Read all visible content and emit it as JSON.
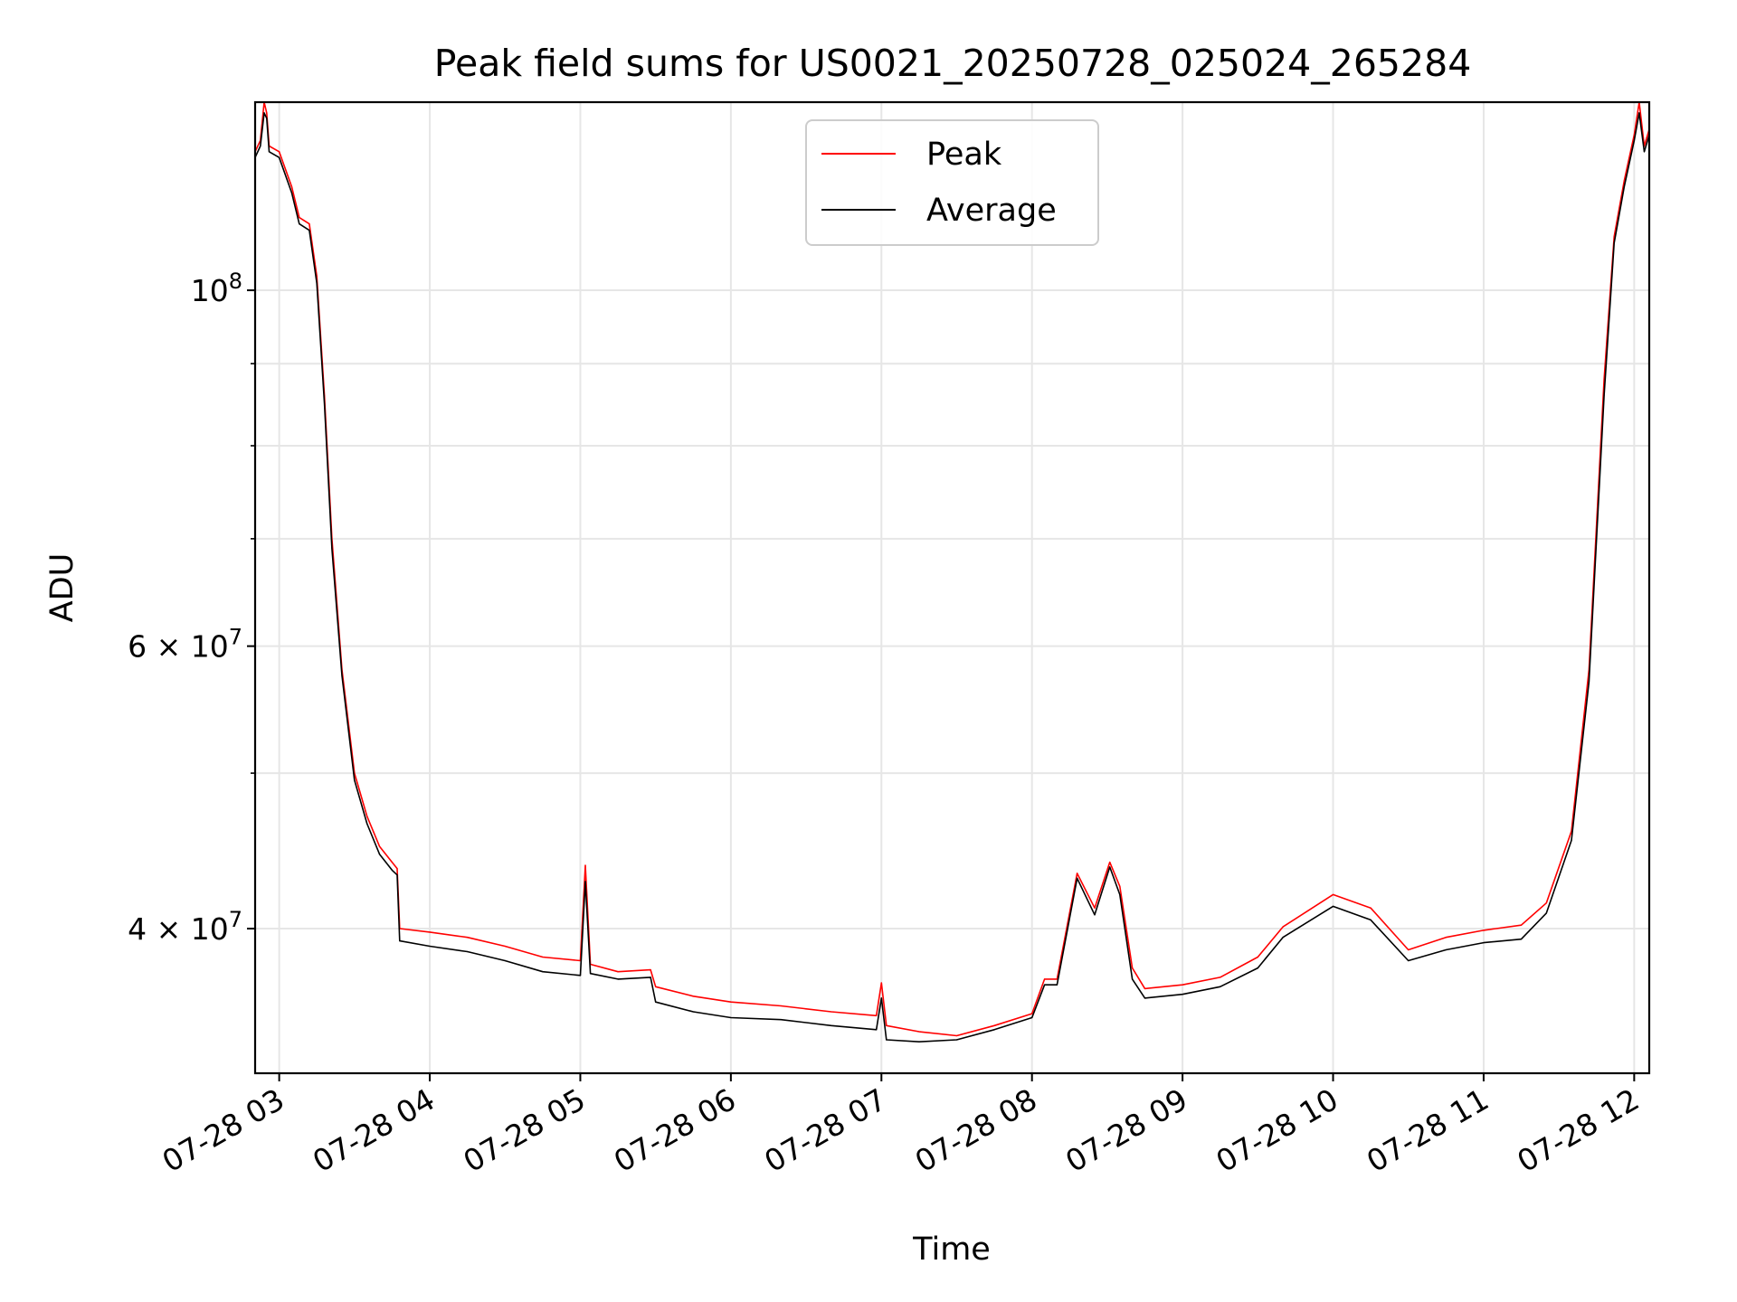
{
  "chart_data": {
    "type": "line",
    "title": "Peak field sums for US0021_20250728_025024_265284",
    "xlabel": "Time",
    "ylabel": "ADU",
    "x_scale": "time",
    "y_scale": "log",
    "xlim": [
      "2025-07-28 02:50:24",
      "2025-07-28 12:06:00"
    ],
    "ylim": [
      32500000,
      131000000
    ],
    "x_ticks": [
      {
        "value": "2025-07-28 03:00",
        "label": "07-28 03"
      },
      {
        "value": "2025-07-28 04:00",
        "label": "07-28 04"
      },
      {
        "value": "2025-07-28 05:00",
        "label": "07-28 05"
      },
      {
        "value": "2025-07-28 06:00",
        "label": "07-28 06"
      },
      {
        "value": "2025-07-28 07:00",
        "label": "07-28 07"
      },
      {
        "value": "2025-07-28 08:00",
        "label": "07-28 08"
      },
      {
        "value": "2025-07-28 09:00",
        "label": "07-28 09"
      },
      {
        "value": "2025-07-28 10:00",
        "label": "07-28 10"
      },
      {
        "value": "2025-07-28 11:00",
        "label": "07-28 11"
      },
      {
        "value": "2025-07-28 12:00",
        "label": "07-28 12"
      }
    ],
    "y_major_ticks": [
      {
        "value": 100000000,
        "base": "10",
        "exp": "8"
      },
      {
        "value": 60000000,
        "base": "6 × 10",
        "exp": "7"
      },
      {
        "value": 40000000,
        "base": "4 × 10",
        "exp": "7"
      }
    ],
    "y_minor_ticks": [
      50000000,
      70000000,
      80000000,
      90000000
    ],
    "grid": true,
    "legend": {
      "position": "top-center"
    },
    "colors": {
      "peak": "#ff0000",
      "average": "#000000",
      "grid": "#e6e6e6"
    },
    "series": [
      {
        "name": "Peak",
        "color": "#ff0000",
        "points": [
          [
            "2025-07-28 02:50:24",
            122000000
          ],
          [
            "2025-07-28 02:52:30",
            124000000
          ],
          [
            "2025-07-28 02:54:00",
            131000000
          ],
          [
            "2025-07-28 02:55:00",
            129000000
          ],
          [
            "2025-07-28 02:56:00",
            123000000
          ],
          [
            "2025-07-28 03:00:00",
            122000000
          ],
          [
            "2025-07-28 03:05:00",
            116000000
          ],
          [
            "2025-07-28 03:08:00",
            111000000
          ],
          [
            "2025-07-28 03:12:00",
            110000000
          ],
          [
            "2025-07-28 03:15:00",
            102000000
          ],
          [
            "2025-07-28 03:18:00",
            86000000
          ],
          [
            "2025-07-28 03:21:00",
            70000000
          ],
          [
            "2025-07-28 03:25:00",
            58000000
          ],
          [
            "2025-07-28 03:30:00",
            50000000
          ],
          [
            "2025-07-28 03:35:00",
            47000000
          ],
          [
            "2025-07-28 03:40:00",
            45000000
          ],
          [
            "2025-07-28 03:45:00",
            44000000
          ],
          [
            "2025-07-28 03:47:00",
            43600000
          ],
          [
            "2025-07-28 03:48:00",
            40000000
          ],
          [
            "2025-07-28 04:00:00",
            39800000
          ],
          [
            "2025-07-28 04:15:00",
            39500000
          ],
          [
            "2025-07-28 04:30:00",
            39000000
          ],
          [
            "2025-07-28 04:45:00",
            38400000
          ],
          [
            "2025-07-28 05:00:00",
            38200000
          ],
          [
            "2025-07-28 05:02:00",
            43800000
          ],
          [
            "2025-07-28 05:04:00",
            38000000
          ],
          [
            "2025-07-28 05:15:00",
            37600000
          ],
          [
            "2025-07-28 05:28:00",
            37700000
          ],
          [
            "2025-07-28 05:30:00",
            36800000
          ],
          [
            "2025-07-28 05:45:00",
            36300000
          ],
          [
            "2025-07-28 06:00:00",
            36000000
          ],
          [
            "2025-07-28 06:20:00",
            35800000
          ],
          [
            "2025-07-28 06:40:00",
            35500000
          ],
          [
            "2025-07-28 06:58:00",
            35300000
          ],
          [
            "2025-07-28 07:00:00",
            37000000
          ],
          [
            "2025-07-28 07:02:00",
            34800000
          ],
          [
            "2025-07-28 07:15:00",
            34500000
          ],
          [
            "2025-07-28 07:30:00",
            34300000
          ],
          [
            "2025-07-28 07:45:00",
            34800000
          ],
          [
            "2025-07-28 08:00:00",
            35400000
          ],
          [
            "2025-07-28 08:05:00",
            37200000
          ],
          [
            "2025-07-28 08:10:00",
            37200000
          ],
          [
            "2025-07-28 08:18:00",
            43300000
          ],
          [
            "2025-07-28 08:25:00",
            41200000
          ],
          [
            "2025-07-28 08:31:00",
            44000000
          ],
          [
            "2025-07-28 08:35:00",
            42500000
          ],
          [
            "2025-07-28 08:40:00",
            37800000
          ],
          [
            "2025-07-28 08:45:00",
            36700000
          ],
          [
            "2025-07-28 09:00:00",
            36900000
          ],
          [
            "2025-07-28 09:15:00",
            37300000
          ],
          [
            "2025-07-28 09:30:00",
            38400000
          ],
          [
            "2025-07-28 09:40:00",
            40100000
          ],
          [
            "2025-07-28 10:00:00",
            42000000
          ],
          [
            "2025-07-28 10:15:00",
            41200000
          ],
          [
            "2025-07-28 10:30:00",
            38800000
          ],
          [
            "2025-07-28 10:45:00",
            39500000
          ],
          [
            "2025-07-28 11:00:00",
            39900000
          ],
          [
            "2025-07-28 11:15:00",
            40200000
          ],
          [
            "2025-07-28 11:25:00",
            41500000
          ],
          [
            "2025-07-28 11:35:00",
            46000000
          ],
          [
            "2025-07-28 11:42:00",
            58000000
          ],
          [
            "2025-07-28 11:48:00",
            88000000
          ],
          [
            "2025-07-28 11:52:00",
            108000000
          ],
          [
            "2025-07-28 11:56:00",
            117000000
          ],
          [
            "2025-07-28 12:00:00",
            125000000
          ],
          [
            "2025-07-28 12:02:00",
            131000000
          ],
          [
            "2025-07-28 12:04:00",
            123000000
          ],
          [
            "2025-07-28 12:06:00",
            126000000
          ]
        ]
      },
      {
        "name": "Average",
        "color": "#000000",
        "points": [
          [
            "2025-07-28 02:50:24",
            121000000
          ],
          [
            "2025-07-28 02:52:30",
            123000000
          ],
          [
            "2025-07-28 02:54:00",
            129000000
          ],
          [
            "2025-07-28 02:55:00",
            128000000
          ],
          [
            "2025-07-28 02:56:00",
            122000000
          ],
          [
            "2025-07-28 03:00:00",
            121000000
          ],
          [
            "2025-07-28 03:05:00",
            115000000
          ],
          [
            "2025-07-28 03:08:00",
            110000000
          ],
          [
            "2025-07-28 03:12:00",
            109000000
          ],
          [
            "2025-07-28 03:15:00",
            101000000
          ],
          [
            "2025-07-28 03:18:00",
            85000000
          ],
          [
            "2025-07-28 03:21:00",
            69000000
          ],
          [
            "2025-07-28 03:25:00",
            57500000
          ],
          [
            "2025-07-28 03:30:00",
            49500000
          ],
          [
            "2025-07-28 03:35:00",
            46500000
          ],
          [
            "2025-07-28 03:40:00",
            44500000
          ],
          [
            "2025-07-28 03:45:00",
            43500000
          ],
          [
            "2025-07-28 03:47:00",
            43200000
          ],
          [
            "2025-07-28 03:48:00",
            39300000
          ],
          [
            "2025-07-28 04:00:00",
            39000000
          ],
          [
            "2025-07-28 04:15:00",
            38700000
          ],
          [
            "2025-07-28 04:30:00",
            38200000
          ],
          [
            "2025-07-28 04:45:00",
            37600000
          ],
          [
            "2025-07-28 05:00:00",
            37400000
          ],
          [
            "2025-07-28 05:02:00",
            42800000
          ],
          [
            "2025-07-28 05:04:00",
            37500000
          ],
          [
            "2025-07-28 05:15:00",
            37200000
          ],
          [
            "2025-07-28 05:28:00",
            37300000
          ],
          [
            "2025-07-28 05:30:00",
            36000000
          ],
          [
            "2025-07-28 05:45:00",
            35500000
          ],
          [
            "2025-07-28 06:00:00",
            35200000
          ],
          [
            "2025-07-28 06:20:00",
            35100000
          ],
          [
            "2025-07-28 06:40:00",
            34800000
          ],
          [
            "2025-07-28 06:58:00",
            34600000
          ],
          [
            "2025-07-28 07:00:00",
            36200000
          ],
          [
            "2025-07-28 07:02:00",
            34100000
          ],
          [
            "2025-07-28 07:15:00",
            34000000
          ],
          [
            "2025-07-28 07:30:00",
            34100000
          ],
          [
            "2025-07-28 07:45:00",
            34600000
          ],
          [
            "2025-07-28 08:00:00",
            35200000
          ],
          [
            "2025-07-28 08:05:00",
            36900000
          ],
          [
            "2025-07-28 08:10:00",
            36900000
          ],
          [
            "2025-07-28 08:18:00",
            43000000
          ],
          [
            "2025-07-28 08:25:00",
            40800000
          ],
          [
            "2025-07-28 08:31:00",
            43700000
          ],
          [
            "2025-07-28 08:35:00",
            42000000
          ],
          [
            "2025-07-28 08:40:00",
            37200000
          ],
          [
            "2025-07-28 08:45:00",
            36200000
          ],
          [
            "2025-07-28 09:00:00",
            36400000
          ],
          [
            "2025-07-28 09:15:00",
            36800000
          ],
          [
            "2025-07-28 09:30:00",
            37800000
          ],
          [
            "2025-07-28 09:40:00",
            39500000
          ],
          [
            "2025-07-28 10:00:00",
            41300000
          ],
          [
            "2025-07-28 10:15:00",
            40500000
          ],
          [
            "2025-07-28 10:30:00",
            38200000
          ],
          [
            "2025-07-28 10:45:00",
            38800000
          ],
          [
            "2025-07-28 11:00:00",
            39200000
          ],
          [
            "2025-07-28 11:15:00",
            39400000
          ],
          [
            "2025-07-28 11:25:00",
            40900000
          ],
          [
            "2025-07-28 11:35:00",
            45400000
          ],
          [
            "2025-07-28 11:42:00",
            57000000
          ],
          [
            "2025-07-28 11:48:00",
            86000000
          ],
          [
            "2025-07-28 11:52:00",
            107000000
          ],
          [
            "2025-07-28 11:56:00",
            116000000
          ],
          [
            "2025-07-28 12:00:00",
            124000000
          ],
          [
            "2025-07-28 12:02:00",
            129000000
          ],
          [
            "2025-07-28 12:04:00",
            122000000
          ],
          [
            "2025-07-28 12:06:00",
            125000000
          ]
        ]
      }
    ]
  }
}
